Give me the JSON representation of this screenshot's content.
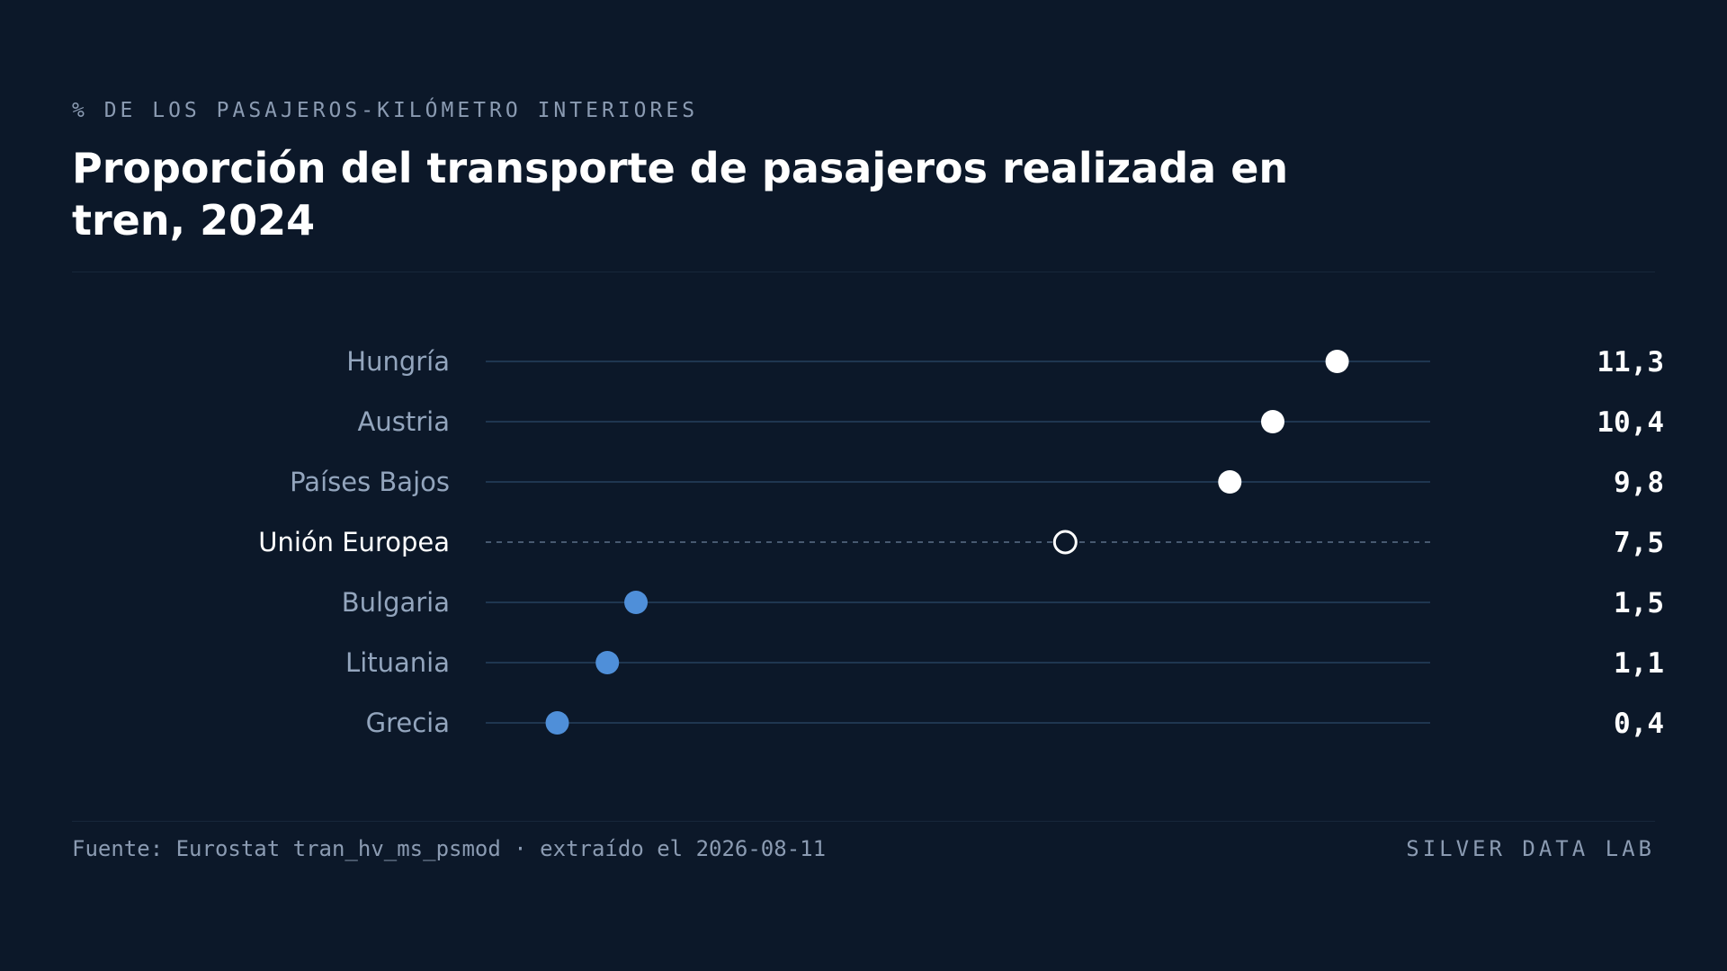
{
  "header": {
    "eyebrow": "% DE LOS PASAJEROS-KILÓMETRO INTERIORES",
    "title": "Proporción del transporte de pasajeros realizada en tren, 2024"
  },
  "footer": {
    "source": "Fuente: Eurostat tran_hv_ms_psmod · extraído el 2026-08-11",
    "brand": "SILVER DATA LAB"
  },
  "colors": {
    "background": "#0c1829",
    "track": "#1f3650",
    "high_dot": "#ffffff",
    "low_dot": "#4f8fd9",
    "reference_dot_stroke": "#ffffff",
    "label": "#93a5bd",
    "reference_label": "#ffffff",
    "value": "#ffffff"
  },
  "chart_data": {
    "type": "dot",
    "title": "Proporción del transporte de pasajeros realizada en tren, 2024",
    "subtitle": "% DE LOS PASAJEROS-KILÓMETRO INTERIORES",
    "xlim": [
      -0.6,
      12.6
    ],
    "grid": false,
    "legend": "none",
    "rows": [
      {
        "label": "Hungría",
        "value": 11.3,
        "value_label": "11,3",
        "group": "high"
      },
      {
        "label": "Austria",
        "value": 10.4,
        "value_label": "10,4",
        "group": "high"
      },
      {
        "label": "Países Bajos",
        "value": 9.8,
        "value_label": "9,8",
        "group": "high"
      },
      {
        "label": "Unión Europea",
        "value": 7.5,
        "value_label": "7,5",
        "group": "reference"
      },
      {
        "label": "Bulgaria",
        "value": 1.5,
        "value_label": "1,5",
        "group": "low"
      },
      {
        "label": "Lituania",
        "value": 1.1,
        "value_label": "1,1",
        "group": "low"
      },
      {
        "label": "Grecia",
        "value": 0.4,
        "value_label": "0,4",
        "group": "low"
      }
    ]
  }
}
